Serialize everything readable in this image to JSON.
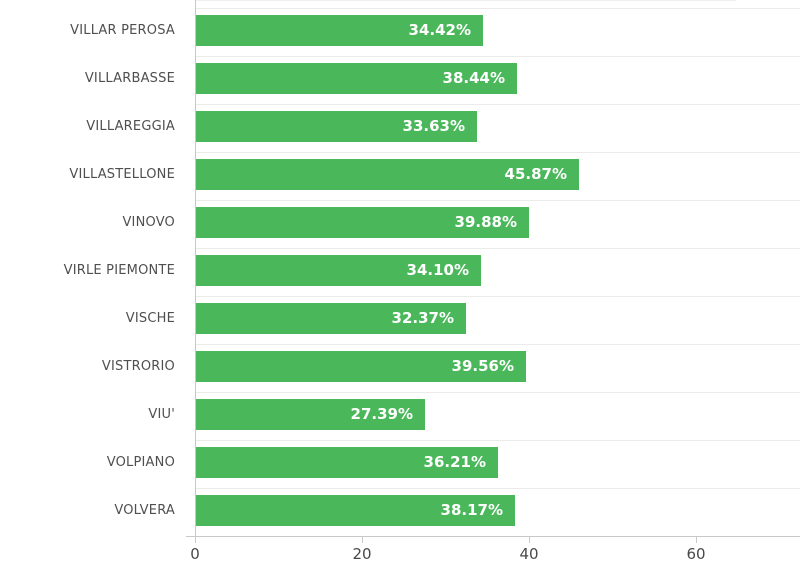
{
  "chart_data": {
    "type": "bar",
    "orientation": "horizontal",
    "title": "",
    "xlabel": "",
    "ylabel": "",
    "categories": [
      "VILLAR PEROSA",
      "VILLARBASSE",
      "VILLAREGGIA",
      "VILLASTELLONE",
      "VINOVO",
      "VIRLE PIEMONTE",
      "VISCHE",
      "VISTRORIO",
      "VIU'",
      "VOLPIANO",
      "VOLVERA"
    ],
    "values": [
      34.42,
      38.44,
      33.63,
      45.87,
      39.88,
      34.1,
      32.37,
      39.56,
      27.39,
      36.21,
      38.17
    ],
    "value_labels": [
      "34.42%",
      "38.44%",
      "33.63%",
      "45.87%",
      "39.88%",
      "34.10%",
      "32.37%",
      "39.56%",
      "27.39%",
      "36.21%",
      "38.17%"
    ],
    "xlim": [
      0,
      72.5
    ],
    "x_ticks": [
      0,
      20,
      40,
      60
    ],
    "x_tick_labels": [
      "0",
      "20",
      "40",
      "60"
    ],
    "bar_color": "#4ab85a",
    "value_label_color": "#ffffff",
    "category_label_color": "#4f4f4f",
    "axis_color": "#c9c9c9",
    "gridline_color": "#ebebeb",
    "grid": "horizontal-row-separators",
    "legend": "none",
    "top_row_clipped": true
  }
}
